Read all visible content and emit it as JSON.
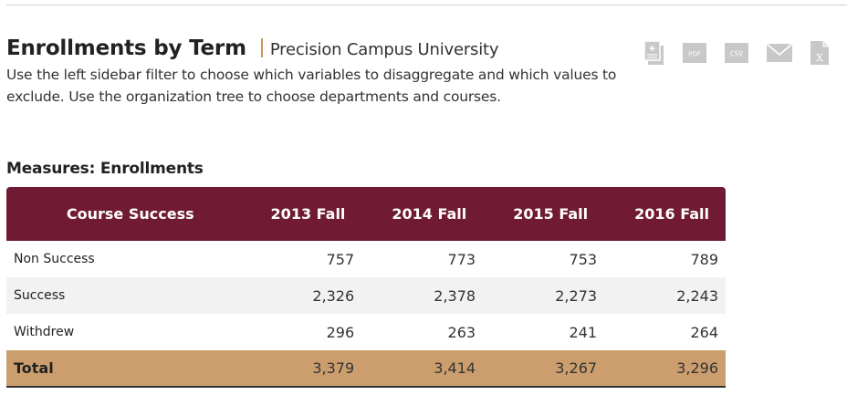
{
  "header": {
    "title": "Enrollments by Term",
    "subtitle": "Precision Campus University",
    "description": "Use the left sidebar filter to choose which variables to disaggregate and which values to exclude. Use the organization tree to choose departments and courses."
  },
  "exports": {
    "pdf_label": "PDF",
    "csv_label": "CSV",
    "excel_label": "X"
  },
  "measures_label": "Measures: Enrollments",
  "table": {
    "headers": [
      "Course Success",
      "2013 Fall",
      "2014 Fall",
      "2015 Fall",
      "2016 Fall"
    ],
    "rows": [
      {
        "label": "Non Success",
        "values": [
          "757",
          "773",
          "753",
          "789"
        ]
      },
      {
        "label": "Success",
        "values": [
          "2,326",
          "2,378",
          "2,273",
          "2,243"
        ]
      },
      {
        "label": "Withdrew",
        "values": [
          "296",
          "263",
          "241",
          "264"
        ]
      }
    ],
    "total": {
      "label": "Total",
      "values": [
        "3,379",
        "3,414",
        "3,267",
        "3,296"
      ]
    }
  },
  "colors": {
    "header_bg": "#701a33",
    "total_bg": "#cc9e6e",
    "accent": "#c99a5b",
    "icon_gray": "#c8c8c8"
  }
}
